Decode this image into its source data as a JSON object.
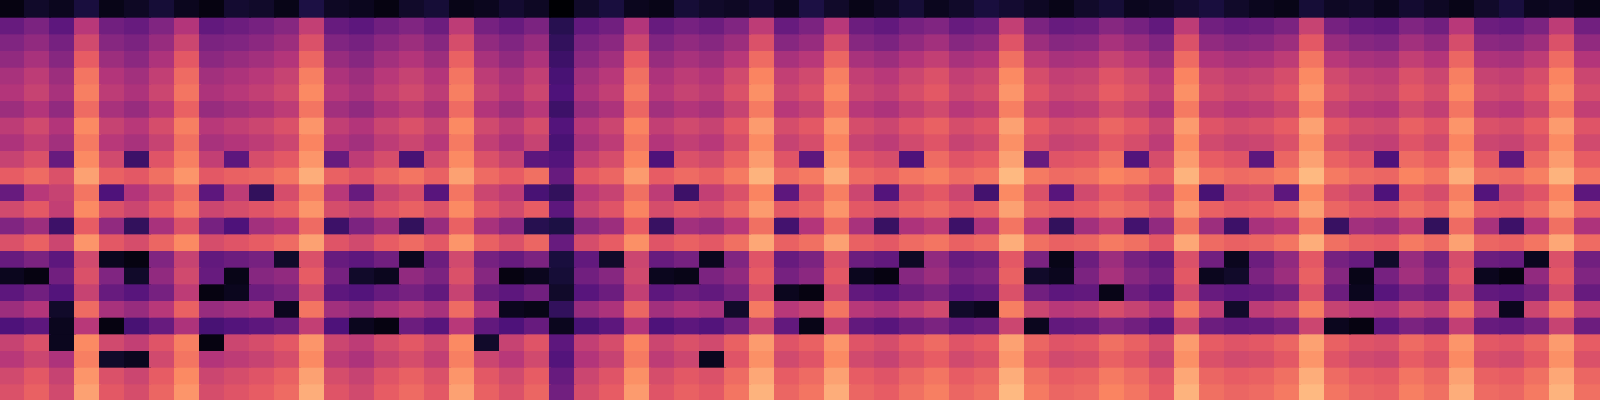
{
  "chart_data": {
    "type": "heatmap",
    "color": "magma",
    "tick_labels": false,
    "cells": [
      [
        8,
        12,
        10,
        15,
        9,
        11,
        14,
        10,
        8,
        13,
        12,
        9,
        16,
        11,
        10,
        8,
        12,
        14,
        9,
        10,
        13,
        11,
        6,
        12,
        15,
        10,
        9,
        14,
        12,
        11,
        13,
        10,
        16,
        12,
        9,
        11,
        14,
        10,
        12,
        15,
        13,
        11,
        9,
        12,
        14,
        10,
        11,
        13,
        15,
        12,
        10,
        9,
        14,
        11,
        12,
        10,
        13,
        11,
        9,
        12,
        15,
        10,
        11,
        9
      ],
      [
        30,
        34,
        28,
        45,
        32,
        30,
        35,
        44,
        29,
        31,
        33,
        36,
        47,
        30,
        28,
        32,
        35,
        31,
        46,
        33,
        30,
        34,
        18,
        29,
        32,
        44,
        30,
        33,
        31,
        35,
        46,
        30,
        34,
        45,
        31,
        29,
        33,
        35,
        30,
        32,
        47,
        34,
        30,
        31,
        36,
        33,
        29,
        46,
        32,
        30,
        31,
        34,
        48,
        33,
        30,
        29,
        35,
        32,
        45,
        31,
        30,
        34,
        46,
        32
      ],
      [
        35,
        38,
        33,
        50,
        36,
        34,
        39,
        49,
        34,
        35,
        37,
        40,
        52,
        35,
        33,
        37,
        40,
        36,
        51,
        38,
        35,
        39,
        20,
        34,
        37,
        49,
        35,
        38,
        36,
        40,
        52,
        36,
        39,
        51,
        36,
        34,
        38,
        41,
        36,
        38,
        53,
        40,
        36,
        37,
        42,
        39,
        35,
        52,
        38,
        36,
        37,
        40,
        54,
        39,
        36,
        35,
        41,
        38,
        51,
        37,
        36,
        40,
        52,
        38
      ],
      [
        38,
        42,
        36,
        55,
        40,
        37,
        43,
        54,
        37,
        39,
        41,
        44,
        57,
        39,
        36,
        41,
        44,
        40,
        56,
        42,
        38,
        43,
        22,
        37,
        41,
        55,
        39,
        42,
        40,
        45,
        58,
        42,
        45,
        57,
        42,
        40,
        44,
        47,
        42,
        44,
        59,
        46,
        42,
        43,
        48,
        45,
        40,
        58,
        44,
        42,
        43,
        46,
        60,
        45,
        42,
        41,
        47,
        44,
        57,
        43,
        42,
        46,
        58,
        44
      ],
      [
        42,
        46,
        40,
        60,
        44,
        41,
        47,
        58,
        41,
        43,
        45,
        48,
        62,
        43,
        40,
        45,
        48,
        44,
        60,
        46,
        42,
        47,
        24,
        41,
        45,
        59,
        43,
        46,
        44,
        50,
        63,
        47,
        50,
        62,
        47,
        45,
        49,
        52,
        47,
        49,
        64,
        51,
        47,
        48,
        53,
        50,
        45,
        63,
        49,
        47,
        48,
        51,
        64,
        50,
        47,
        46,
        52,
        49,
        62,
        48,
        47,
        51,
        63,
        49
      ],
      [
        44,
        48,
        42,
        62,
        46,
        43,
        49,
        60,
        43,
        45,
        47,
        50,
        64,
        45,
        42,
        47,
        50,
        46,
        62,
        48,
        44,
        49,
        25,
        43,
        47,
        61,
        45,
        48,
        46,
        52,
        65,
        49,
        52,
        64,
        49,
        47,
        51,
        54,
        49,
        51,
        66,
        53,
        49,
        50,
        55,
        52,
        47,
        65,
        51,
        49,
        50,
        53,
        66,
        52,
        49,
        48,
        54,
        51,
        64,
        50,
        49,
        53,
        65,
        51
      ],
      [
        40,
        44,
        38,
        58,
        42,
        39,
        45,
        56,
        39,
        41,
        43,
        46,
        60,
        41,
        38,
        43,
        46,
        42,
        58,
        44,
        40,
        45,
        22,
        39,
        43,
        57,
        41,
        44,
        42,
        48,
        61,
        45,
        48,
        60,
        45,
        43,
        47,
        50,
        45,
        47,
        62,
        49,
        45,
        46,
        51,
        48,
        43,
        61,
        47,
        45,
        46,
        49,
        62,
        48,
        45,
        44,
        50,
        47,
        60,
        46,
        45,
        49,
        61,
        47
      ],
      [
        46,
        50,
        44,
        64,
        48,
        45,
        51,
        62,
        45,
        47,
        49,
        52,
        66,
        47,
        44,
        49,
        52,
        48,
        64,
        50,
        46,
        51,
        26,
        45,
        49,
        63,
        47,
        50,
        48,
        54,
        67,
        51,
        54,
        66,
        51,
        49,
        53,
        56,
        51,
        53,
        68,
        55,
        51,
        52,
        57,
        54,
        49,
        67,
        53,
        51,
        52,
        55,
        68,
        54,
        51,
        50,
        56,
        53,
        66,
        52,
        51,
        55,
        67,
        53
      ],
      [
        43,
        47,
        41,
        61,
        45,
        42,
        48,
        59,
        42,
        44,
        46,
        49,
        63,
        44,
        41,
        46,
        49,
        45,
        61,
        47,
        43,
        48,
        24,
        42,
        46,
        60,
        44,
        47,
        45,
        51,
        64,
        48,
        51,
        63,
        48,
        46,
        50,
        53,
        48,
        50,
        65,
        52,
        48,
        49,
        54,
        51,
        46,
        64,
        50,
        48,
        49,
        52,
        65,
        51,
        48,
        47,
        53,
        50,
        63,
        49,
        48,
        52,
        64,
        50
      ],
      [
        48,
        52,
        30,
        64,
        50,
        22,
        53,
        62,
        47,
        28,
        51,
        54,
        66,
        30,
        46,
        51,
        24,
        50,
        64,
        52,
        48,
        28,
        26,
        47,
        51,
        63,
        25,
        52,
        50,
        56,
        67,
        53,
        28,
        66,
        53,
        51,
        25,
        58,
        53,
        55,
        68,
        30,
        53,
        54,
        59,
        26,
        51,
        67,
        55,
        53,
        28,
        57,
        68,
        56,
        53,
        25,
        58,
        55,
        66,
        54,
        28,
        57,
        67,
        55
      ],
      [
        55,
        58,
        52,
        68,
        56,
        54,
        59,
        66,
        54,
        56,
        57,
        60,
        70,
        56,
        53,
        57,
        60,
        56,
        68,
        58,
        55,
        59,
        30,
        54,
        57,
        67,
        55,
        58,
        56,
        61,
        71,
        58,
        61,
        70,
        58,
        56,
        60,
        62,
        58,
        60,
        72,
        61,
        58,
        59,
        63,
        61,
        56,
        71,
        60,
        58,
        59,
        62,
        72,
        61,
        58,
        57,
        63,
        60,
        70,
        59,
        58,
        62,
        71,
        60
      ],
      [
        30,
        45,
        48,
        60,
        25,
        44,
        50,
        58,
        28,
        46,
        20,
        51,
        62,
        45,
        30,
        48,
        51,
        27,
        60,
        49,
        46,
        24,
        20,
        45,
        48,
        59,
        46,
        22,
        47,
        52,
        63,
        28,
        52,
        62,
        49,
        26,
        51,
        54,
        49,
        23,
        64,
        52,
        27,
        50,
        55,
        52,
        47,
        63,
        24,
        49,
        50,
        28,
        64,
        52,
        49,
        25,
        54,
        51,
        62,
        26,
        49,
        53,
        63,
        28
      ],
      [
        50,
        54,
        47,
        64,
        52,
        49,
        55,
        62,
        49,
        51,
        53,
        56,
        66,
        51,
        48,
        53,
        56,
        52,
        64,
        54,
        50,
        55,
        28,
        49,
        53,
        63,
        51,
        54,
        52,
        57,
        67,
        54,
        57,
        66,
        54,
        52,
        56,
        58,
        54,
        56,
        68,
        57,
        54,
        55,
        59,
        57,
        52,
        67,
        56,
        54,
        55,
        58,
        68,
        57,
        54,
        53,
        59,
        56,
        66,
        55,
        54,
        58,
        67,
        56
      ],
      [
        35,
        40,
        22,
        55,
        38,
        20,
        42,
        52,
        33,
        25,
        41,
        44,
        58,
        22,
        34,
        40,
        20,
        39,
        56,
        42,
        37,
        18,
        16,
        36,
        40,
        55,
        21,
        41,
        39,
        45,
        59,
        23,
        44,
        58,
        42,
        21,
        43,
        46,
        22,
        43,
        60,
        45,
        20,
        41,
        47,
        23,
        38,
        59,
        40,
        22,
        42,
        45,
        60,
        21,
        41,
        39,
        46,
        20,
        58,
        42,
        22,
        44,
        59,
        43
      ],
      [
        52,
        56,
        49,
        66,
        54,
        51,
        57,
        64,
        51,
        53,
        55,
        58,
        68,
        53,
        50,
        55,
        58,
        54,
        66,
        56,
        52,
        57,
        30,
        51,
        55,
        65,
        53,
        56,
        54,
        59,
        69,
        56,
        59,
        68,
        56,
        54,
        58,
        60,
        56,
        58,
        70,
        59,
        56,
        57,
        61,
        59,
        54,
        69,
        58,
        56,
        57,
        60,
        70,
        59,
        56,
        55,
        61,
        58,
        68,
        57,
        56,
        60,
        69,
        58
      ],
      [
        30,
        34,
        28,
        50,
        10,
        8,
        35,
        48,
        29,
        31,
        33,
        12,
        52,
        30,
        28,
        32,
        10,
        31,
        50,
        33,
        30,
        34,
        15,
        29,
        12,
        49,
        30,
        33,
        10,
        35,
        53,
        30,
        34,
        52,
        31,
        29,
        11,
        38,
        30,
        32,
        54,
        34,
        9,
        31,
        40,
        33,
        29,
        52,
        32,
        10,
        31,
        38,
        54,
        33,
        30,
        12,
        39,
        32,
        51,
        31,
        30,
        10,
        52,
        32
      ],
      [
        10,
        8,
        32,
        52,
        35,
        12,
        38,
        50,
        30,
        9,
        36,
        38,
        55,
        33,
        12,
        10,
        38,
        34,
        52,
        36,
        8,
        10,
        14,
        32,
        36,
        50,
        10,
        9,
        34,
        38,
        55,
        33,
        37,
        54,
        10,
        8,
        36,
        40,
        33,
        35,
        56,
        12,
        10,
        34,
        42,
        36,
        32,
        54,
        10,
        12,
        34,
        40,
        56,
        36,
        9,
        33,
        41,
        35,
        53,
        10,
        8,
        38,
        54,
        35
      ],
      [
        28,
        32,
        26,
        48,
        30,
        27,
        33,
        46,
        8,
        10,
        31,
        34,
        50,
        28,
        26,
        30,
        33,
        29,
        48,
        31,
        28,
        32,
        12,
        27,
        31,
        47,
        28,
        31,
        29,
        33,
        51,
        10,
        8,
        50,
        29,
        27,
        31,
        34,
        28,
        30,
        52,
        32,
        28,
        29,
        9,
        31,
        27,
        50,
        30,
        28,
        29,
        32,
        52,
        31,
        10,
        27,
        33,
        30,
        49,
        29,
        28,
        32,
        50,
        30
      ],
      [
        40,
        44,
        12,
        58,
        42,
        39,
        45,
        56,
        39,
        41,
        43,
        10,
        60,
        41,
        38,
        43,
        46,
        42,
        58,
        44,
        10,
        9,
        20,
        39,
        43,
        57,
        41,
        44,
        42,
        12,
        61,
        45,
        48,
        60,
        45,
        43,
        47,
        50,
        12,
        10,
        62,
        49,
        45,
        46,
        51,
        48,
        43,
        61,
        47,
        12,
        46,
        49,
        62,
        48,
        45,
        44,
        50,
        47,
        60,
        46,
        10,
        49,
        61,
        47
      ],
      [
        25,
        28,
        10,
        45,
        8,
        24,
        30,
        43,
        24,
        26,
        28,
        31,
        47,
        25,
        10,
        8,
        31,
        27,
        45,
        29,
        25,
        30,
        10,
        24,
        28,
        44,
        25,
        28,
        26,
        32,
        48,
        29,
        9,
        47,
        29,
        27,
        31,
        34,
        29,
        31,
        49,
        10,
        29,
        30,
        35,
        32,
        27,
        48,
        31,
        29,
        30,
        33,
        49,
        10,
        8,
        28,
        34,
        31,
        47,
        30,
        29,
        33,
        48,
        31
      ],
      [
        48,
        52,
        10,
        64,
        50,
        47,
        53,
        62,
        8,
        49,
        51,
        54,
        66,
        49,
        46,
        51,
        54,
        50,
        64,
        12,
        48,
        53,
        28,
        47,
        51,
        63,
        49,
        52,
        50,
        56,
        67,
        53,
        56,
        66,
        53,
        51,
        55,
        58,
        53,
        55,
        68,
        57,
        53,
        54,
        59,
        56,
        51,
        67,
        55,
        53,
        54,
        57,
        68,
        56,
        53,
        52,
        58,
        55,
        66,
        54,
        53,
        57,
        67,
        55
      ],
      [
        45,
        49,
        43,
        62,
        12,
        10,
        50,
        60,
        44,
        46,
        48,
        51,
        64,
        46,
        43,
        48,
        51,
        47,
        62,
        49,
        45,
        50,
        26,
        44,
        48,
        61,
        46,
        49,
        10,
        53,
        65,
        50,
        53,
        64,
        50,
        48,
        52,
        55,
        50,
        52,
        66,
        54,
        50,
        51,
        56,
        53,
        48,
        65,
        52,
        50,
        51,
        54,
        66,
        53,
        50,
        49,
        55,
        52,
        64,
        51,
        50,
        54,
        65,
        52
      ],
      [
        50,
        54,
        48,
        66,
        52,
        49,
        55,
        64,
        49,
        51,
        53,
        56,
        68,
        51,
        48,
        53,
        56,
        52,
        66,
        54,
        50,
        55,
        30,
        49,
        53,
        65,
        51,
        54,
        52,
        58,
        69,
        55,
        58,
        68,
        55,
        53,
        57,
        60,
        55,
        57,
        70,
        59,
        55,
        56,
        61,
        58,
        53,
        69,
        57,
        55,
        56,
        59,
        70,
        58,
        55,
        54,
        60,
        57,
        68,
        56,
        55,
        59,
        69,
        57
      ],
      [
        52,
        56,
        50,
        68,
        54,
        51,
        57,
        66,
        51,
        53,
        55,
        58,
        70,
        53,
        50,
        55,
        58,
        54,
        68,
        56,
        52,
        57,
        32,
        51,
        55,
        67,
        53,
        56,
        54,
        60,
        71,
        57,
        60,
        70,
        57,
        55,
        59,
        62,
        57,
        59,
        72,
        61,
        57,
        58,
        63,
        60,
        55,
        71,
        59,
        57,
        58,
        61,
        72,
        60,
        57,
        56,
        62,
        59,
        70,
        58,
        57,
        61,
        71,
        59
      ]
    ]
  }
}
